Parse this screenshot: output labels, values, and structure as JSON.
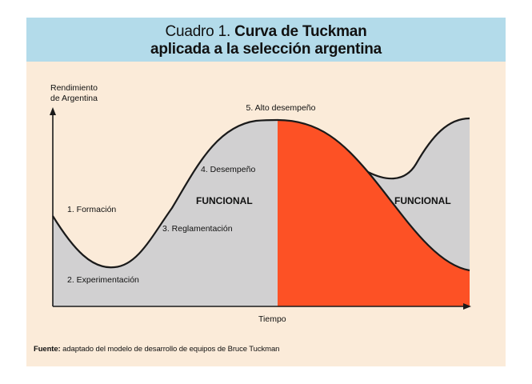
{
  "colors": {
    "header_background": "#b3dbea",
    "panel_background": "#fbebd9",
    "functional_area": "#d1d0d1",
    "decline_area": "#fd5125",
    "curve_and_axes": "#1a1a1a"
  },
  "header": {
    "prefix": "Cuadro 1.",
    "title_bold": "Curva de Tuckman",
    "title_line2": "aplicada a la selección argentina"
  },
  "axes": {
    "y_label_line1": "Rendimiento",
    "y_label_line2": "de Argentina",
    "x_label": "Tiempo"
  },
  "stages": {
    "formacion": "1. Formación",
    "experimentacion": "2. Experimentación",
    "reglamentacion": "3. Reglamentación",
    "desempeno": "4. Desempeño",
    "alto_desempeno": "5. Alto desempeño"
  },
  "regions": {
    "left_label": "FUNCIONAL",
    "right_label": "FUNCIONAL"
  },
  "footer": {
    "source_label": "Fuente:",
    "source_text": "adaptado del modelo de desarrollo de equipos de Bruce Tuckman"
  }
}
